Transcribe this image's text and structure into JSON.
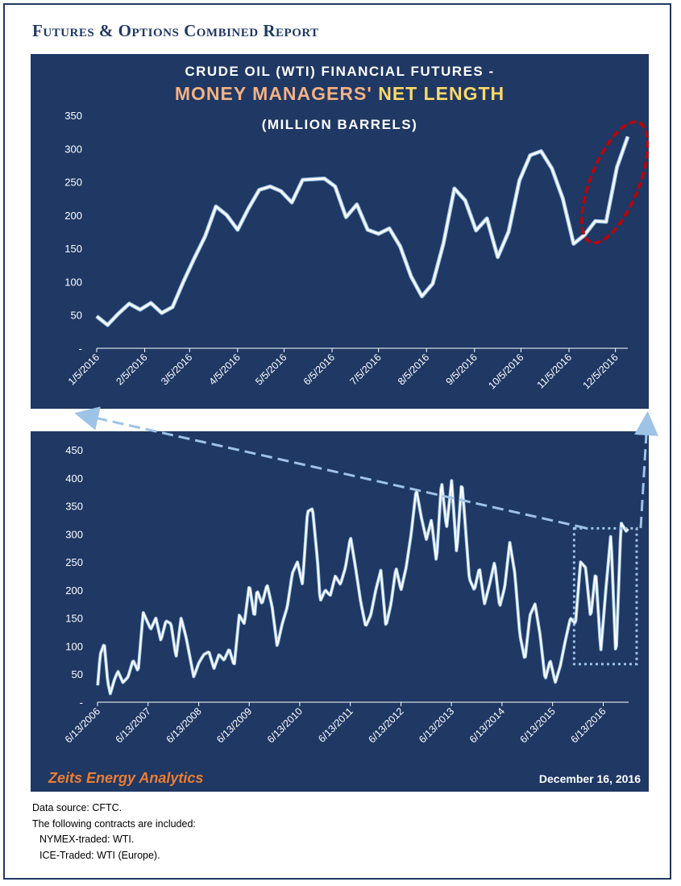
{
  "report_title": "Futures & Options Combined Report",
  "brand": "Zeits Energy Analytics",
  "report_date": "December 16, 2016",
  "notes": {
    "source": "Data source: CFTC.",
    "contracts_intro": "The following contracts are included:",
    "nymex": "NYMEX-traded: WTI.",
    "ice": "ICE-Traded: WTI (Europe)."
  },
  "colors": {
    "panel_bg": "#1f3864",
    "line": "#ffffff",
    "line_shadow": "#9dc3e6",
    "title_orange": "#f4b183",
    "title_yellow": "#ffd966",
    "brand": "#ed7d31",
    "highlight_circle": "#c00000",
    "arrow": "#9dc3e6"
  },
  "chart_data": [
    {
      "type": "area",
      "title_line1": "CRUDE OIL (WTI) FINANCIAL FUTURES -",
      "title_part_a": "MONEY MANAGERS'",
      "title_part_b": "NET LENGTH",
      "title_line3": "(MILLION BARRELS)",
      "ylim": [
        0,
        350
      ],
      "yticks": [
        "-",
        "50",
        "100",
        "150",
        "200",
        "250",
        "300",
        "350"
      ],
      "ytick_values": [
        0,
        50,
        100,
        150,
        200,
        250,
        300,
        350
      ],
      "xtick_labels": [
        "1/5/2016",
        "2/5/2016",
        "3/5/2016",
        "4/5/2016",
        "5/5/2016",
        "6/5/2016",
        "7/5/2016",
        "8/5/2016",
        "9/5/2016",
        "10/5/2016",
        "11/5/2016",
        "12/5/2016"
      ],
      "x": [
        "1/5/2016",
        "1/12/2016",
        "1/19/2016",
        "1/26/2016",
        "2/2/2016",
        "2/9/2016",
        "2/16/2016",
        "2/23/2016",
        "3/1/2016",
        "3/8/2016",
        "3/15/2016",
        "3/22/2016",
        "3/29/2016",
        "4/5/2016",
        "4/12/2016",
        "4/19/2016",
        "4/26/2016",
        "5/3/2016",
        "5/10/2016",
        "5/17/2016",
        "5/24/2016",
        "5/31/2016",
        "6/7/2016",
        "6/14/2016",
        "6/21/2016",
        "6/28/2016",
        "7/5/2016",
        "7/12/2016",
        "7/19/2016",
        "7/26/2016",
        "8/2/2016",
        "8/9/2016",
        "8/16/2016",
        "8/23/2016",
        "8/30/2016",
        "9/6/2016",
        "9/13/2016",
        "9/20/2016",
        "9/27/2016",
        "10/4/2016",
        "10/11/2016",
        "10/18/2016",
        "10/25/2016",
        "11/1/2016",
        "11/8/2016",
        "11/15/2016",
        "11/22/2016",
        "11/29/2016",
        "12/6/2016",
        "12/13/2016"
      ],
      "values": [
        48,
        35,
        52,
        67,
        58,
        68,
        53,
        62,
        100,
        135,
        168,
        213,
        200,
        178,
        210,
        238,
        243,
        236,
        219,
        253,
        254,
        255,
        243,
        197,
        216,
        178,
        172,
        180,
        153,
        108,
        78,
        97,
        158,
        240,
        222,
        177,
        195,
        137,
        175,
        252,
        290,
        296,
        270,
        225,
        157,
        170,
        191,
        190,
        272,
        318
      ],
      "highlight": "last four weeks circled (red dashed ellipse)"
    },
    {
      "type": "area",
      "ylim": [
        0,
        450
      ],
      "yticks": [
        "-",
        "50",
        "100",
        "150",
        "200",
        "250",
        "300",
        "350",
        "400",
        "450"
      ],
      "ytick_values": [
        0,
        50,
        100,
        150,
        200,
        250,
        300,
        350,
        400,
        450
      ],
      "xtick_labels": [
        "6/13/2006",
        "6/13/2007",
        "6/13/2008",
        "6/13/2009",
        "6/13/2010",
        "6/13/2011",
        "6/13/2012",
        "6/13/2013",
        "6/13/2014",
        "6/13/2015",
        "6/13/2016"
      ],
      "x_start": "6/13/2006",
      "x_end": "12/13/2016",
      "anchor_years": [
        2006.45,
        2006.5,
        2006.58,
        2006.65,
        2006.7,
        2006.78,
        2006.85,
        2006.95,
        2007.05,
        2007.15,
        2007.25,
        2007.35,
        2007.5,
        2007.6,
        2007.7,
        2007.8,
        2007.9,
        2008.0,
        2008.1,
        2008.2,
        2008.35,
        2008.45,
        2008.55,
        2008.65,
        2008.75,
        2008.85,
        2008.95,
        2009.05,
        2009.15,
        2009.25,
        2009.35,
        2009.45,
        2009.55,
        2009.6,
        2009.7,
        2009.8,
        2009.9,
        2010.0,
        2010.1,
        2010.2,
        2010.3,
        2010.4,
        2010.5,
        2010.6,
        2010.7,
        2010.8,
        2010.85,
        2010.95,
        2011.05,
        2011.15,
        2011.25,
        2011.35,
        2011.45,
        2011.55,
        2011.65,
        2011.75,
        2011.85,
        2011.95,
        2012.05,
        2012.15,
        2012.25,
        2012.35,
        2012.45,
        2012.55,
        2012.65,
        2012.75,
        2012.85,
        2012.95,
        2013.05,
        2013.15,
        2013.25,
        2013.35,
        2013.45,
        2013.55,
        2013.65,
        2013.7,
        2013.8,
        2013.9,
        2014.0,
        2014.1,
        2014.2,
        2014.3,
        2014.4,
        2014.5,
        2014.6,
        2014.7,
        2014.8,
        2014.9,
        2015.0,
        2015.1,
        2015.2,
        2015.3,
        2015.4,
        2015.5,
        2015.6,
        2015.7,
        2015.8,
        2015.9,
        2016.0,
        2016.1,
        2016.2,
        2016.3,
        2016.4,
        2016.5,
        2016.6,
        2016.7,
        2016.8,
        2016.9,
        2016.95
      ],
      "anchor_values": [
        30,
        85,
        105,
        35,
        15,
        40,
        55,
        35,
        45,
        75,
        55,
        160,
        130,
        150,
        110,
        145,
        140,
        80,
        150,
        115,
        45,
        70,
        85,
        90,
        60,
        85,
        75,
        95,
        65,
        155,
        140,
        210,
        150,
        200,
        175,
        210,
        170,
        100,
        140,
        170,
        230,
        250,
        210,
        340,
        345,
        250,
        180,
        200,
        190,
        225,
        210,
        240,
        295,
        240,
        180,
        135,
        155,
        200,
        235,
        135,
        175,
        240,
        200,
        240,
        300,
        380,
        330,
        290,
        325,
        250,
        395,
        310,
        395,
        265,
        395,
        340,
        220,
        200,
        240,
        175,
        210,
        250,
        170,
        205,
        285,
        230,
        120,
        75,
        155,
        175,
        120,
        40,
        75,
        35,
        65,
        110,
        150,
        140,
        250,
        240,
        150,
        235,
        90,
        200,
        300,
        75,
        320,
        305,
        310
      ],
      "inset_box": "dotted box around 2016 data (same period as the top chart)"
    }
  ]
}
